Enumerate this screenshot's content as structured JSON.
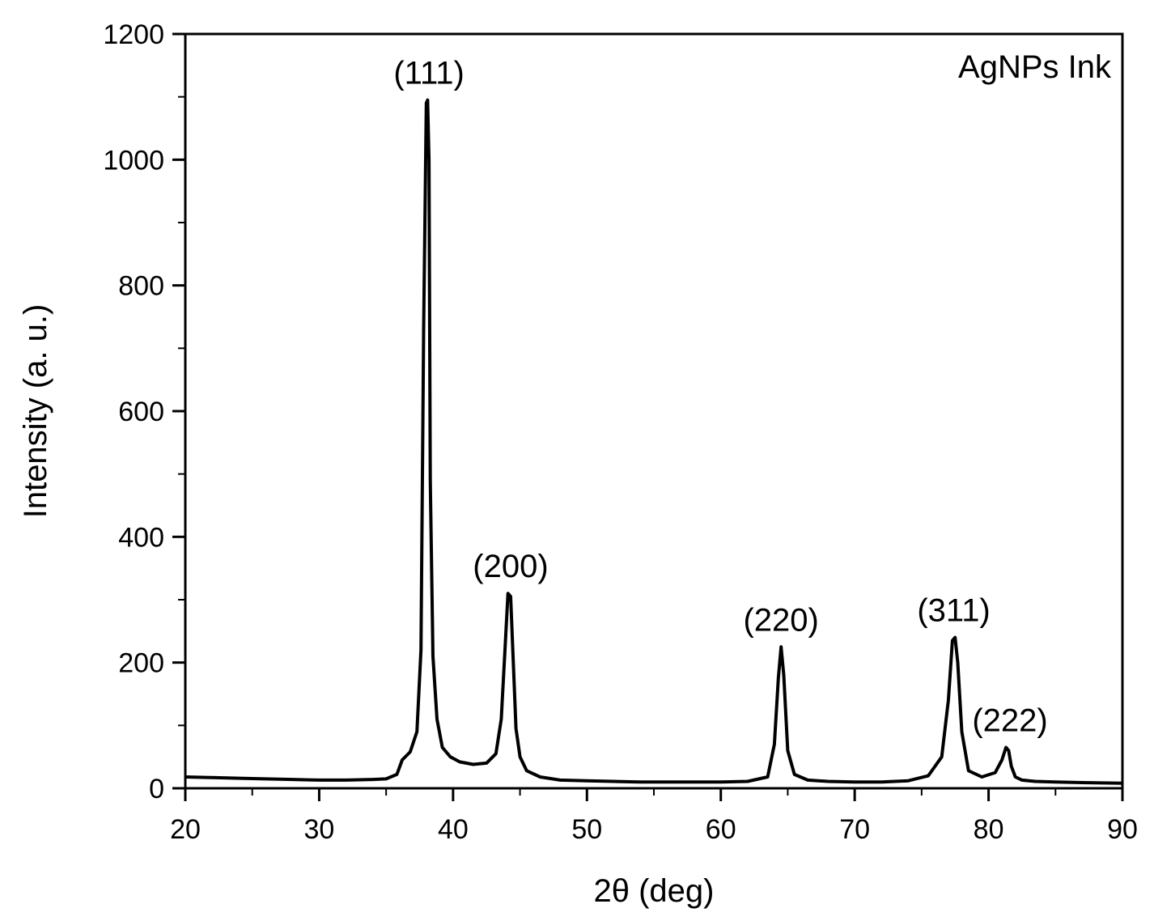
{
  "chart_data": {
    "type": "line",
    "title": "",
    "xlabel": "2θ (deg)",
    "ylabel": "Intensity (a. u.)",
    "xlim": [
      20,
      90
    ],
    "ylim": [
      0,
      1200
    ],
    "x_ticks": [
      20,
      30,
      40,
      50,
      60,
      70,
      80,
      90
    ],
    "y_ticks": [
      0,
      200,
      400,
      600,
      800,
      1000,
      1200
    ],
    "x_minor_step": 5,
    "y_minor_step": 100,
    "grid": false,
    "legend": {
      "label": "AgNPs Ink",
      "position": "top-right"
    },
    "series": [
      {
        "name": "AgNPs Ink",
        "color": "#000000",
        "x": [
          20,
          22,
          24,
          26,
          28,
          30,
          32,
          34,
          35,
          35.8,
          36.2,
          36.8,
          37.3,
          37.6,
          37.8,
          38.0,
          38.1,
          38.2,
          38.3,
          38.5,
          38.8,
          39.2,
          39.8,
          40.5,
          41.5,
          42.5,
          43.2,
          43.6,
          43.9,
          44.1,
          44.3,
          44.5,
          44.7,
          45.0,
          45.5,
          46.5,
          48,
          50,
          52,
          54,
          56,
          58,
          60,
          62,
          63.5,
          64.0,
          64.3,
          64.5,
          64.7,
          65.0,
          65.5,
          66.5,
          68,
          70,
          72,
          74,
          75.5,
          76.5,
          77.0,
          77.3,
          77.5,
          77.7,
          78.0,
          78.5,
          79.5,
          80.5,
          81.0,
          81.3,
          81.5,
          81.7,
          82.0,
          82.5,
          83.5,
          85,
          87,
          90
        ],
        "y": [
          18,
          17,
          16,
          15,
          14,
          13,
          13,
          14,
          15,
          22,
          45,
          58,
          90,
          220,
          730,
          1090,
          1095,
          1000,
          490,
          210,
          110,
          65,
          50,
          42,
          38,
          40,
          55,
          110,
          230,
          310,
          305,
          200,
          95,
          50,
          28,
          18,
          13,
          12,
          11,
          10,
          10,
          10,
          10,
          11,
          18,
          70,
          175,
          225,
          180,
          60,
          22,
          13,
          11,
          10,
          10,
          12,
          20,
          50,
          140,
          235,
          240,
          200,
          90,
          28,
          18,
          25,
          45,
          65,
          60,
          35,
          18,
          13,
          11,
          10,
          9,
          8
        ]
      }
    ],
    "annotations": [
      {
        "text": "(111)",
        "x": 38.2
      },
      {
        "text": "(200)",
        "x": 44.3
      },
      {
        "text": "(220)",
        "x": 64.5
      },
      {
        "text": "(311)",
        "x": 77.4
      },
      {
        "text": "(222)",
        "x": 81.6
      }
    ]
  }
}
